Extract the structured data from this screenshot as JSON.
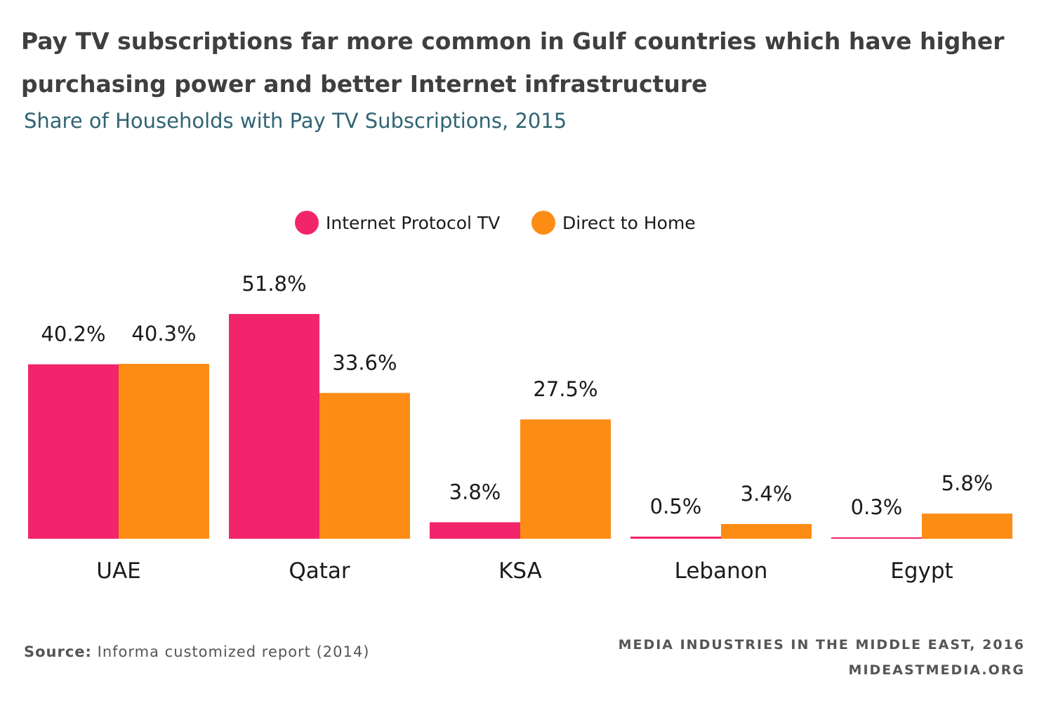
{
  "title": "Pay TV subscriptions far more common in Gulf countries which have higher purchasing power and better Internet infrastructure",
  "subtitle": "Share of Households with Pay TV Subscriptions, 2015",
  "source": {
    "label": "Source:",
    "text": "Informa customized report (2014)"
  },
  "credit": {
    "line1": "MEDIA INDUSTRIES IN THE MIDDLE EAST, 2016",
    "line2": "MIDEASTMEDIA.ORG"
  },
  "chart_data": {
    "type": "bar",
    "title": "Pay TV subscriptions far more common in Gulf countries which have higher purchasing power and better Internet infrastructure",
    "subtitle": "Share of Households with Pay TV Subscriptions, 2015",
    "categories": [
      "UAE",
      "Qatar",
      "KSA",
      "Lebanon",
      "Egypt"
    ],
    "series": [
      {
        "name": "Internet Protocol TV",
        "color": "#f2256c",
        "values": [
          40.2,
          51.8,
          3.8,
          0.5,
          0.3
        ],
        "labels": [
          "40.2%",
          "51.8%",
          "3.8%",
          "0.5%",
          "0.3%"
        ]
      },
      {
        "name": "Direct to Home",
        "color": "#fd8c15",
        "values": [
          40.3,
          33.6,
          27.5,
          3.4,
          5.8
        ],
        "labels": [
          "40.3%",
          "33.6%",
          "27.5%",
          "3.4%",
          "5.8%"
        ]
      }
    ],
    "ylim": [
      0,
      51.8
    ],
    "grid": false,
    "legend_position": "top-center",
    "xlabel": "",
    "ylabel": ""
  }
}
